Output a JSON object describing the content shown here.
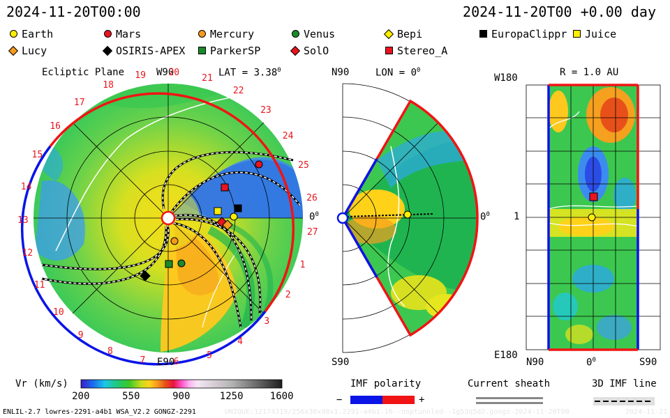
{
  "header": {
    "time_left": "2024-11-20T00:00",
    "time_right": "2024-11-20T00 +0.00 day"
  },
  "legend": [
    {
      "name": "Earth",
      "shape": "circle",
      "color": "#ffee00"
    },
    {
      "name": "Mars",
      "shape": "circle",
      "color": "#e8141e"
    },
    {
      "name": "Mercury",
      "shape": "circle",
      "color": "#f59a1e"
    },
    {
      "name": "Venus",
      "shape": "circle",
      "color": "#1a8a2a"
    },
    {
      "name": "Bepi",
      "shape": "diamond",
      "color": "#ffee00"
    },
    {
      "name": "EuropaClippr",
      "shape": "square",
      "color": "#000000"
    },
    {
      "name": "Juice",
      "shape": "square",
      "color": "#ffee00"
    },
    {
      "name": "Lucy",
      "shape": "diamond",
      "color": "#f59a1e"
    },
    {
      "name": "OSIRIS-APEX",
      "shape": "diamond",
      "color": "#000000"
    },
    {
      "name": "ParkerSP",
      "shape": "square",
      "color": "#1a8a2a"
    },
    {
      "name": "SolO",
      "shape": "diamond",
      "color": "#e8141e"
    },
    {
      "name": "Stereo_A",
      "shape": "square",
      "color": "#e8141e"
    }
  ],
  "ecliptic": {
    "title": "Ecliptic Plane",
    "lat_label": "LAT = 3.38",
    "lat_sup": "0",
    "top_label": "W90",
    "bottom_label": "E90",
    "right_label": "0",
    "right_sup": "0",
    "carrington_ticks": [
      "19",
      "20",
      "21",
      "22",
      "23",
      "24",
      "25",
      "26",
      "27",
      "1",
      "2",
      "3",
      "4",
      "5",
      "6",
      "7",
      "8",
      "9",
      "10",
      "11",
      "12",
      "13",
      "14",
      "15",
      "16",
      "17",
      "18"
    ]
  },
  "meridional": {
    "title": "LON = 0",
    "title_sup": "0",
    "top_label": "N90",
    "bottom_label": "S90",
    "right_label": "0",
    "right_sup": "0"
  },
  "latlon": {
    "title": "R = 1.0 AU",
    "left_top": "W180",
    "left_mid": "1",
    "left_bottom": "E180",
    "bottom_left": "N90",
    "bottom_mid": "0",
    "bottom_mid_sup": "0",
    "bottom_right": "S90"
  },
  "colorbar": {
    "label": "Vr (km/s)",
    "ticks": [
      "200",
      "550",
      "900",
      "1250",
      "1600"
    ],
    "range": [
      200,
      1600
    ]
  },
  "imf": {
    "title": "IMF polarity",
    "minus": "−",
    "plus": "+",
    "colors": {
      "negative": "#0a14e6",
      "positive": "#f01414"
    }
  },
  "sheath": {
    "title": "Current sheath"
  },
  "imfline": {
    "title": "3D IMF line"
  },
  "footer": {
    "model": "ENLIL-2.7 lowres-2291-a4b1 WSA_V2.2 GONGZ-2291",
    "run_id": "UNIQUE:12174319/256x30x90x1.2291-a4b1.16--noptunnled--1g53q5d2.gongz-2024-11-20T00",
    "date": "2024-11-21"
  },
  "chart_data": [
    {
      "type": "heatmap",
      "title": "Ecliptic Plane",
      "quantity": "Vr (km/s)",
      "range": [
        200,
        1600
      ],
      "lat_label": "LAT = 3.38",
      "objects": [
        "Earth",
        "Mars",
        "Mercury",
        "Venus",
        "Bepi",
        "EuropaClippr",
        "Juice",
        "Lucy",
        "OSIRIS-APEX",
        "ParkerSP",
        "SolO",
        "Stereo_A"
      ]
    },
    {
      "type": "heatmap",
      "title": "LON = 0",
      "quantity": "Vr (km/s)",
      "range": [
        200,
        1600
      ]
    },
    {
      "type": "heatmap",
      "title": "R = 1.0 AU",
      "quantity": "Vr (km/s)",
      "range": [
        200,
        1600
      ]
    }
  ]
}
